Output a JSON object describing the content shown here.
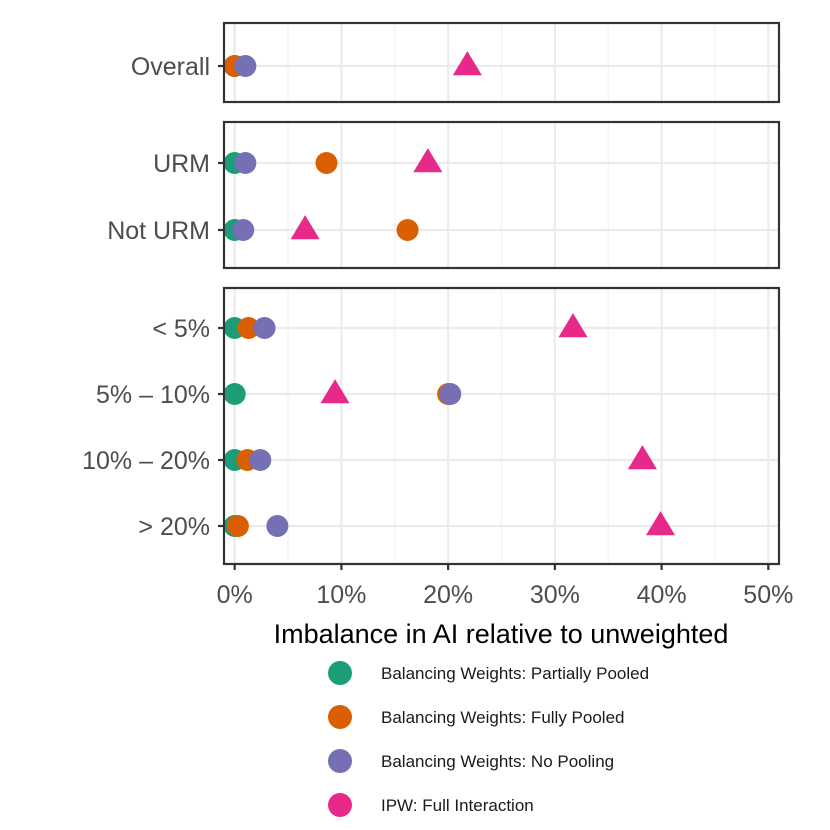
{
  "chart_data": {
    "type": "scatter",
    "xlabel": "Imbalance in AI relative to unweighted",
    "xlim": [
      -1,
      51
    ],
    "xticks": [
      0,
      10,
      20,
      30,
      40,
      50
    ],
    "xtick_labels": [
      "0%",
      "10%",
      "20%",
      "30%",
      "40%",
      "50%"
    ],
    "grid": true,
    "legend_position": "bottom",
    "series": [
      {
        "name": "Balancing Weights: Partially Pooled",
        "color": "#1b9e77",
        "shape": "circle"
      },
      {
        "name": "Balancing Weights: Fully Pooled",
        "color": "#d95f02",
        "shape": "circle"
      },
      {
        "name": "Balancing Weights: No Pooling",
        "color": "#7570b3",
        "shape": "circle"
      },
      {
        "name": "IPW: Full Interaction",
        "color": "#e7298a",
        "shape": "triangle"
      }
    ],
    "panels": [
      {
        "categories": [
          "Overall"
        ],
        "values": [
          [
            0.0,
            0.0,
            1.0,
            21.8
          ]
        ]
      },
      {
        "categories": [
          "URM",
          "Not URM"
        ],
        "values": [
          [
            0.0,
            8.6,
            1.0,
            18.1
          ],
          [
            0.0,
            16.2,
            0.8,
            6.6
          ]
        ]
      },
      {
        "categories": [
          "< 5%",
          "5% – 10%",
          "10% – 20%",
          "> 20%"
        ],
        "values": [
          [
            0.0,
            1.3,
            2.8,
            31.7
          ],
          [
            0.0,
            20.0,
            20.2,
            9.4
          ],
          [
            0.0,
            1.2,
            2.4,
            38.2
          ],
          [
            0.0,
            0.3,
            4.0,
            39.9
          ]
        ]
      }
    ]
  }
}
